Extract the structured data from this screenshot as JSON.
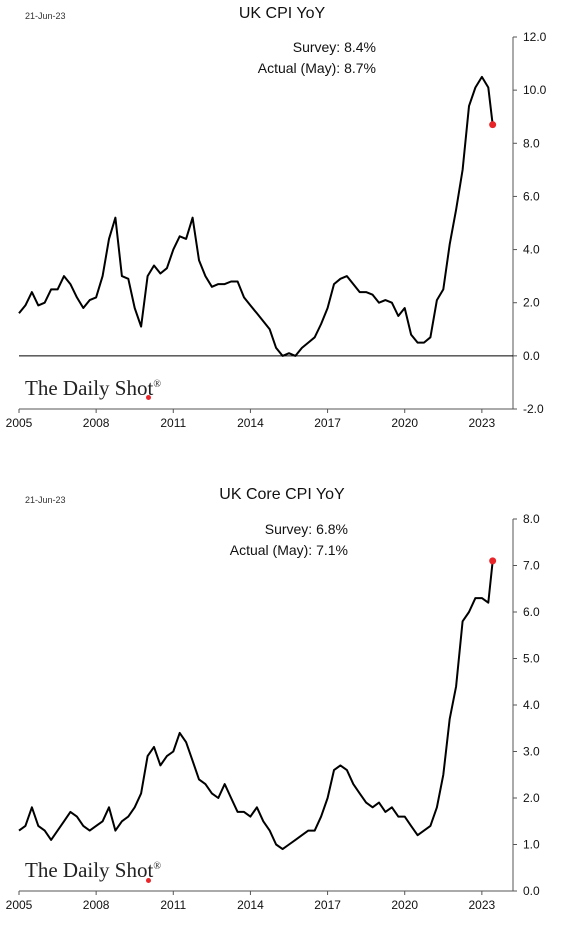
{
  "chart_data": [
    {
      "type": "line",
      "date_stamp": "21-Jun-23",
      "title": "UK CPI YoY",
      "annotations": {
        "survey": "Survey:  8.4%",
        "actual": "Actual (May):  8.7%"
      },
      "logo": "The Daily Shot",
      "logo_mark": "®",
      "xlim": [
        2005,
        2023.9
      ],
      "ylim": [
        -2.0,
        12.0
      ],
      "y_ticks": [
        "12.0",
        "10.0",
        "8.0",
        "6.0",
        "4.0",
        "2.0",
        "0.0",
        "-2.0"
      ],
      "x_ticks": [
        "2005",
        "2008",
        "2011",
        "2014",
        "2017",
        "2020",
        "2023"
      ],
      "highlight_last_point": true,
      "colors": {
        "line": "#000000",
        "marker": "#e8262a"
      },
      "x": [
        2005.0,
        2005.25,
        2005.5,
        2005.75,
        2006.0,
        2006.25,
        2006.5,
        2006.75,
        2007.0,
        2007.25,
        2007.5,
        2007.75,
        2008.0,
        2008.25,
        2008.5,
        2008.75,
        2009.0,
        2009.25,
        2009.5,
        2009.75,
        2010.0,
        2010.25,
        2010.5,
        2010.75,
        2011.0,
        2011.25,
        2011.5,
        2011.75,
        2012.0,
        2012.25,
        2012.5,
        2012.75,
        2013.0,
        2013.25,
        2013.5,
        2013.75,
        2014.0,
        2014.25,
        2014.5,
        2014.75,
        2015.0,
        2015.25,
        2015.5,
        2015.75,
        2016.0,
        2016.25,
        2016.5,
        2016.75,
        2017.0,
        2017.25,
        2017.5,
        2017.75,
        2018.0,
        2018.25,
        2018.5,
        2018.75,
        2019.0,
        2019.25,
        2019.5,
        2019.75,
        2020.0,
        2020.25,
        2020.5,
        2020.75,
        2021.0,
        2021.25,
        2021.5,
        2021.75,
        2022.0,
        2022.25,
        2022.5,
        2022.75,
        2023.0,
        2023.25,
        2023.42
      ],
      "y": [
        1.6,
        1.9,
        2.4,
        1.9,
        2.0,
        2.5,
        2.5,
        3.0,
        2.7,
        2.2,
        1.8,
        2.1,
        2.2,
        3.0,
        4.4,
        5.2,
        3.0,
        2.9,
        1.8,
        1.1,
        3.0,
        3.4,
        3.1,
        3.3,
        4.0,
        4.5,
        4.4,
        5.2,
        3.6,
        3.0,
        2.6,
        2.7,
        2.7,
        2.8,
        2.8,
        2.2,
        1.9,
        1.6,
        1.3,
        1.0,
        0.3,
        0.0,
        0.1,
        0.0,
        0.3,
        0.5,
        0.7,
        1.2,
        1.8,
        2.7,
        2.9,
        3.0,
        2.7,
        2.4,
        2.4,
        2.3,
        2.0,
        2.1,
        2.0,
        1.5,
        1.8,
        0.8,
        0.5,
        0.5,
        0.7,
        2.1,
        2.5,
        4.2,
        5.5,
        7.0,
        9.4,
        10.1,
        10.5,
        10.1,
        8.7
      ]
    },
    {
      "type": "line",
      "date_stamp": "21-Jun-23",
      "title": "UK Core CPI YoY",
      "annotations": {
        "survey": "Survey:  6.8%",
        "actual": "Actual (May):  7.1%"
      },
      "logo": "The Daily Shot",
      "logo_mark": "®",
      "xlim": [
        2005,
        2023.9
      ],
      "ylim": [
        0.0,
        8.0
      ],
      "y_ticks": [
        "8.0",
        "7.0",
        "6.0",
        "5.0",
        "4.0",
        "3.0",
        "2.0",
        "1.0",
        "0.0"
      ],
      "x_ticks": [
        "2005",
        "2008",
        "2011",
        "2014",
        "2017",
        "2020",
        "2023"
      ],
      "highlight_last_point": true,
      "colors": {
        "line": "#000000",
        "marker": "#e8262a"
      },
      "x": [
        2005.0,
        2005.25,
        2005.5,
        2005.75,
        2006.0,
        2006.25,
        2006.5,
        2006.75,
        2007.0,
        2007.25,
        2007.5,
        2007.75,
        2008.0,
        2008.25,
        2008.5,
        2008.75,
        2009.0,
        2009.25,
        2009.5,
        2009.75,
        2010.0,
        2010.25,
        2010.5,
        2010.75,
        2011.0,
        2011.25,
        2011.5,
        2011.75,
        2012.0,
        2012.25,
        2012.5,
        2012.75,
        2013.0,
        2013.25,
        2013.5,
        2013.75,
        2014.0,
        2014.25,
        2014.5,
        2014.75,
        2015.0,
        2015.25,
        2015.5,
        2015.75,
        2016.0,
        2016.25,
        2016.5,
        2016.75,
        2017.0,
        2017.25,
        2017.5,
        2017.75,
        2018.0,
        2018.25,
        2018.5,
        2018.75,
        2019.0,
        2019.25,
        2019.5,
        2019.75,
        2020.0,
        2020.25,
        2020.5,
        2020.75,
        2021.0,
        2021.25,
        2021.5,
        2021.75,
        2022.0,
        2022.25,
        2022.5,
        2022.75,
        2023.0,
        2023.25,
        2023.42
      ],
      "y": [
        1.3,
        1.4,
        1.8,
        1.4,
        1.3,
        1.1,
        1.3,
        1.5,
        1.7,
        1.6,
        1.4,
        1.3,
        1.4,
        1.5,
        1.8,
        1.3,
        1.5,
        1.6,
        1.8,
        2.1,
        2.9,
        3.1,
        2.7,
        2.9,
        3.0,
        3.4,
        3.2,
        2.8,
        2.4,
        2.3,
        2.1,
        2.0,
        2.3,
        2.0,
        1.7,
        1.7,
        1.6,
        1.8,
        1.5,
        1.3,
        1.0,
        0.9,
        1.0,
        1.1,
        1.2,
        1.3,
        1.3,
        1.6,
        2.0,
        2.6,
        2.7,
        2.6,
        2.3,
        2.1,
        1.9,
        1.8,
        1.9,
        1.7,
        1.8,
        1.6,
        1.6,
        1.4,
        1.2,
        1.3,
        1.4,
        1.8,
        2.5,
        3.7,
        4.4,
        5.8,
        6.0,
        6.3,
        6.3,
        6.2,
        7.1
      ]
    }
  ]
}
